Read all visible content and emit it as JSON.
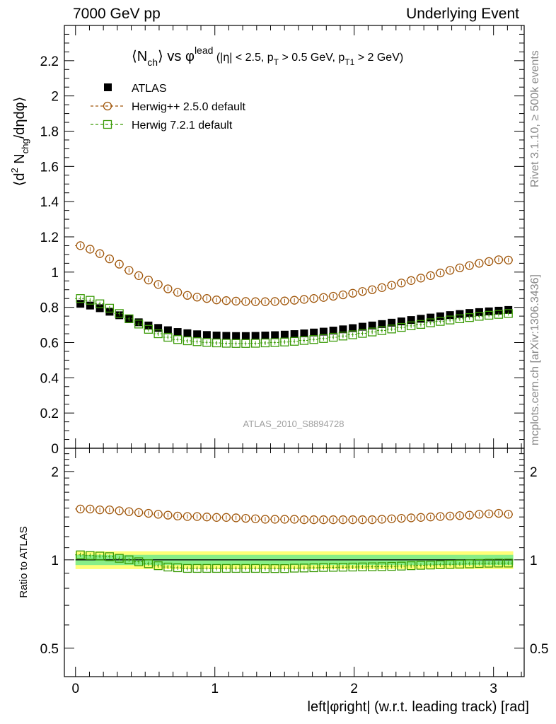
{
  "header": {
    "left": "7000 GeV pp",
    "right": "Underlying Event"
  },
  "side_labels": {
    "rivet": "Rivet 3.1.10, ≥ 500k events",
    "mcplots": "mcplots.cern.ch [arXiv:1306.3436]"
  },
  "chart_data": [
    {
      "type": "scatter",
      "panel": "main",
      "title_parts": {
        "lead": "⟨N",
        "lead_sub": "ch",
        "mid": "⟩ vs φ",
        "mid_sup": "lead",
        "cuts_1": " (|η| < 2.5, p",
        "cuts_1_sub": "T",
        "cuts_2": " > 0.5 GeV, p",
        "cuts_2_sub": "T1",
        "cuts_3": " > 2 GeV)"
      },
      "ylabel_parts": {
        "a": "⟨d",
        "a_sup": "2",
        "b": " N",
        "b_sub": "chg",
        "c": "/dηdφ⟩"
      },
      "ylim": [
        0,
        2.4
      ],
      "yticks": [
        0,
        0.2,
        0.4,
        0.6,
        0.8,
        1,
        1.2,
        1.4,
        1.6,
        1.8,
        2,
        2.2
      ],
      "ytick_labels": [
        "0",
        "0.2",
        "0.4",
        "0.6",
        "0.8",
        "1",
        "1.2",
        "1.4",
        "1.6",
        "1.8",
        "2",
        "2.2"
      ],
      "watermark": "ATLAS_2010_S8894728",
      "x": [
        0.0349,
        0.1047,
        0.1745,
        0.2443,
        0.3142,
        0.384,
        0.4538,
        0.5236,
        0.5934,
        0.6632,
        0.733,
        0.8029,
        0.8727,
        0.9425,
        1.0123,
        1.0821,
        1.1519,
        1.2217,
        1.2915,
        1.3614,
        1.4312,
        1.501,
        1.5708,
        1.6406,
        1.7104,
        1.7802,
        1.85,
        1.9199,
        1.9897,
        2.0595,
        2.1293,
        2.1991,
        2.2689,
        2.3387,
        2.4086,
        2.4784,
        2.5482,
        2.618,
        2.6878,
        2.7576,
        2.8274,
        2.8972,
        2.9671,
        3.0369,
        3.1067
      ],
      "series": [
        {
          "name": "ATLAS",
          "color": "#000000",
          "marker": "filled-square",
          "values": [
            0.82,
            0.81,
            0.795,
            0.775,
            0.755,
            0.735,
            0.715,
            0.697,
            0.683,
            0.67,
            0.66,
            0.653,
            0.647,
            0.643,
            0.64,
            0.638,
            0.637,
            0.637,
            0.638,
            0.64,
            0.642,
            0.645,
            0.648,
            0.652,
            0.657,
            0.662,
            0.668,
            0.675,
            0.682,
            0.69,
            0.697,
            0.705,
            0.713,
            0.72,
            0.728,
            0.735,
            0.742,
            0.749,
            0.756,
            0.762,
            0.768,
            0.773,
            0.777,
            0.781,
            0.785
          ]
        },
        {
          "name": "Herwig++ 2.5.0 default",
          "color": "#a0560a",
          "marker": "open-circle",
          "values": [
            1.15,
            1.13,
            1.105,
            1.075,
            1.045,
            1.01,
            0.98,
            0.955,
            0.93,
            0.905,
            0.885,
            0.868,
            0.858,
            0.85,
            0.842,
            0.838,
            0.835,
            0.833,
            0.832,
            0.832,
            0.833,
            0.836,
            0.84,
            0.845,
            0.85,
            0.856,
            0.863,
            0.871,
            0.88,
            0.89,
            0.9,
            0.912,
            0.925,
            0.938,
            0.952,
            0.966,
            0.98,
            0.995,
            1.01,
            1.024,
            1.037,
            1.05,
            1.06,
            1.07,
            1.068
          ]
        },
        {
          "name": "Herwig 7.2.1 default",
          "color": "#3a9a06",
          "marker": "open-square",
          "values": [
            0.85,
            0.84,
            0.82,
            0.795,
            0.765,
            0.735,
            0.705,
            0.675,
            0.65,
            0.63,
            0.617,
            0.61,
            0.605,
            0.601,
            0.598,
            0.596,
            0.595,
            0.595,
            0.596,
            0.598,
            0.6,
            0.603,
            0.607,
            0.612,
            0.617,
            0.623,
            0.63,
            0.637,
            0.644,
            0.652,
            0.66,
            0.668,
            0.677,
            0.686,
            0.695,
            0.703,
            0.712,
            0.72,
            0.728,
            0.735,
            0.742,
            0.749,
            0.755,
            0.76,
            0.765
          ]
        }
      ]
    },
    {
      "type": "scatter",
      "panel": "ratio",
      "ylabel": "Ratio to ATLAS",
      "xlabel": "left|φright| (w.r.t. leading track) [rad]",
      "ylim": [
        0.4,
        2.4
      ],
      "yscale": "log",
      "yticks": [
        0.5,
        1,
        2
      ],
      "ytick_labels": [
        "0.5",
        "1",
        "2"
      ],
      "xlim": [
        -0.08,
        3.22
      ],
      "xticks": [
        0,
        1,
        2,
        3
      ],
      "xtick_labels": [
        "0",
        "1",
        "2",
        "3"
      ],
      "band_inner": [
        0.96,
        1.04
      ],
      "band_outer": [
        0.93,
        1.07
      ],
      "series": [
        {
          "name": "Herwig++ 2.5.0 default",
          "color": "#a0560a",
          "marker": "open-circle",
          "values": [
            1.49,
            1.49,
            1.48,
            1.48,
            1.47,
            1.46,
            1.45,
            1.44,
            1.43,
            1.42,
            1.41,
            1.405,
            1.405,
            1.4,
            1.395,
            1.395,
            1.39,
            1.385,
            1.38,
            1.375,
            1.375,
            1.375,
            1.375,
            1.37,
            1.37,
            1.37,
            1.37,
            1.37,
            1.37,
            1.37,
            1.37,
            1.375,
            1.38,
            1.385,
            1.39,
            1.395,
            1.4,
            1.405,
            1.41,
            1.415,
            1.42,
            1.43,
            1.435,
            1.44,
            1.43
          ]
        },
        {
          "name": "Herwig 7.2.1 default",
          "color": "#3a9a06",
          "marker": "open-square",
          "values": [
            1.04,
            1.035,
            1.03,
            1.025,
            1.012,
            1.0,
            0.985,
            0.97,
            0.955,
            0.945,
            0.94,
            0.935,
            0.935,
            0.935,
            0.935,
            0.935,
            0.935,
            0.935,
            0.935,
            0.934,
            0.934,
            0.934,
            0.937,
            0.938,
            0.94,
            0.942,
            0.943,
            0.944,
            0.945,
            0.946,
            0.947,
            0.948,
            0.95,
            0.952,
            0.955,
            0.958,
            0.96,
            0.962,
            0.965,
            0.967,
            0.969,
            0.972,
            0.974,
            0.975,
            0.975
          ]
        }
      ]
    }
  ]
}
